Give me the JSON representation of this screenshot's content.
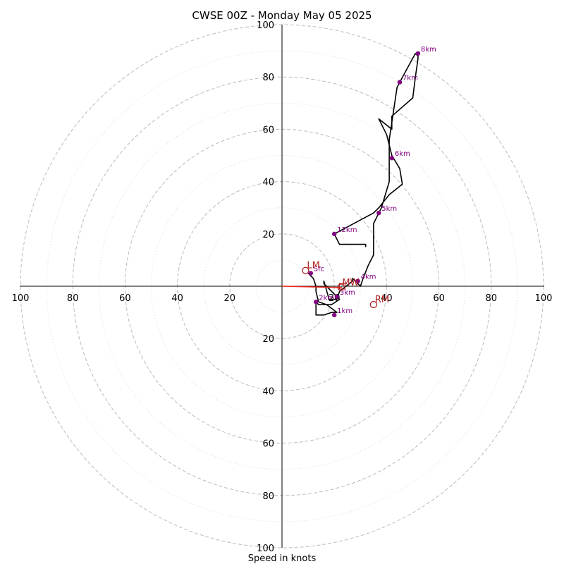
{
  "chart_data": {
    "type": "line",
    "title": "CWSE 00Z - Monday May 05 2025",
    "xlabel": "Speed in knots",
    "ylabel": "",
    "range": [
      0,
      100
    ],
    "rings_major": [
      20,
      40,
      60,
      80,
      100
    ],
    "rings_minor": [
      10,
      30,
      50,
      70,
      90
    ],
    "axis_ticks": [
      "100",
      "80",
      "60",
      "40",
      "20",
      "20",
      "40",
      "60",
      "80",
      "100"
    ],
    "vertical_axis_ticks": [
      "100",
      "80",
      "60",
      "40",
      "20",
      "20",
      "40",
      "60",
      "80",
      "100"
    ],
    "series": [
      {
        "color": "#000000",
        "points": [
          [
            32,
            15
          ],
          [
            32,
            16
          ],
          [
            28,
            16
          ],
          [
            22,
            16
          ],
          [
            20,
            20
          ],
          [
            35,
            28
          ],
          [
            37,
            30
          ],
          [
            41,
            35
          ],
          [
            46,
            39
          ],
          [
            45,
            45
          ],
          [
            42,
            50
          ],
          [
            40,
            58
          ],
          [
            37,
            64
          ],
          [
            42,
            60
          ],
          [
            42,
            65
          ],
          [
            50,
            72
          ],
          [
            51,
            80
          ],
          [
            52,
            87
          ],
          [
            52,
            88
          ],
          [
            51,
            89
          ],
          [
            45,
            78
          ],
          [
            44,
            76
          ],
          [
            41,
            56
          ],
          [
            41,
            48
          ],
          [
            41,
            40
          ],
          [
            38,
            30
          ],
          [
            35,
            24
          ],
          [
            35,
            12
          ],
          [
            33,
            8
          ],
          [
            31,
            3
          ],
          [
            30,
            0
          ],
          [
            27,
            3
          ],
          [
            27,
            2
          ],
          [
            22,
            -2
          ],
          [
            21,
            -5
          ],
          [
            18,
            -5
          ],
          [
            16,
            2
          ],
          [
            16,
            1
          ],
          [
            17,
            0
          ],
          [
            22,
            -5
          ],
          [
            19,
            -7
          ],
          [
            14,
            -7
          ],
          [
            13,
            -6
          ],
          [
            13,
            -11
          ],
          [
            16,
            -11
          ],
          [
            19,
            -10
          ],
          [
            21,
            -10
          ],
          [
            17,
            -7
          ],
          [
            14,
            -6
          ],
          [
            13,
            -2
          ],
          [
            13,
            0
          ],
          [
            12,
            3
          ],
          [
            11,
            4
          ],
          [
            10,
            5
          ]
        ]
      },
      {
        "color": "#e8251b",
        "points": [
          [
            0,
            0
          ],
          [
            23,
            -0.5
          ]
        ]
      }
    ],
    "height_markers": [
      {
        "label": "Sfc",
        "x": 11,
        "y": 5
      },
      {
        "label": "1km",
        "x": 20,
        "y": -11
      },
      {
        "label": "2km",
        "x": 13,
        "y": -6
      },
      {
        "label": "3km",
        "x": 21,
        "y": -4
      },
      {
        "label": "4km",
        "x": 29,
        "y": 2
      },
      {
        "label": "5km",
        "x": 37,
        "y": 28
      },
      {
        "label": "6km",
        "x": 42,
        "y": 49
      },
      {
        "label": "7km",
        "x": 45,
        "y": 78
      },
      {
        "label": "8km",
        "x": 52,
        "y": 89
      },
      {
        "label": "12km",
        "x": 20,
        "y": 20
      }
    ],
    "storm_motions": [
      {
        "label": "LM",
        "x": 9,
        "y": 6
      },
      {
        "label": "RM",
        "x": 35,
        "y": -7
      },
      {
        "label": "MW",
        "x": 23,
        "y": 0
      },
      {
        "label": "C",
        "x": 21,
        "y": -1
      }
    ],
    "colors": {
      "profile": "#000000",
      "height_marker": "#800080",
      "storm_motion": "#b22222",
      "shear": "#e8251b",
      "ring_major": "#bbbbbb",
      "ring_minor": "#d9d9d9"
    }
  }
}
